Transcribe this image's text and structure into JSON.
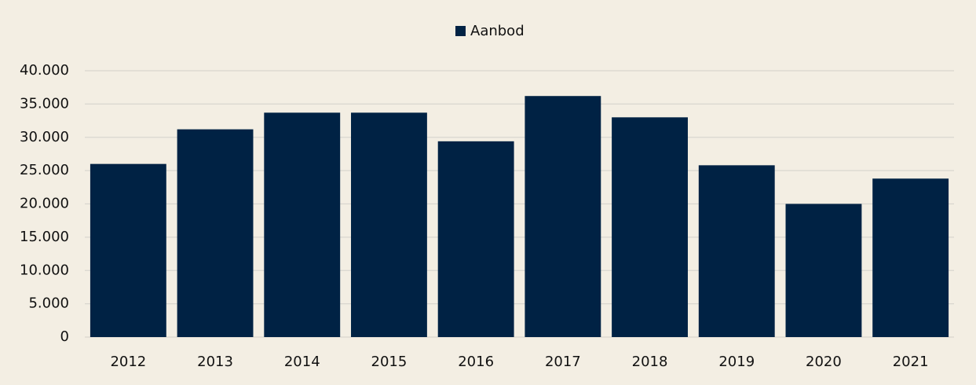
{
  "chart_data": {
    "type": "bar",
    "legend": "top",
    "categories": [
      "2012",
      "2013",
      "2014",
      "2015",
      "2016",
      "2017",
      "2018",
      "2019",
      "2020",
      "2021"
    ],
    "series": [
      {
        "name": "Aanbod",
        "color": "#002244",
        "values": [
          26000,
          31200,
          33700,
          33700,
          29400,
          36200,
          33000,
          25800,
          20000,
          23800
        ]
      }
    ],
    "ylim": [
      0,
      40000
    ],
    "yticks": [
      0,
      {
        "value": 5000,
        "label": "5.000"
      },
      {
        "value": 10000,
        "label": "10.000"
      },
      {
        "value": 15000,
        "label": "15.000"
      },
      {
        "value": 20000,
        "label": "20.000"
      },
      {
        "value": 25000,
        "label": "25.000"
      },
      {
        "value": 30000,
        "label": "30.000"
      },
      {
        "value": 35000,
        "label": "35.000"
      },
      {
        "value": 40000,
        "label": "40.000"
      }
    ],
    "grid": true
  }
}
